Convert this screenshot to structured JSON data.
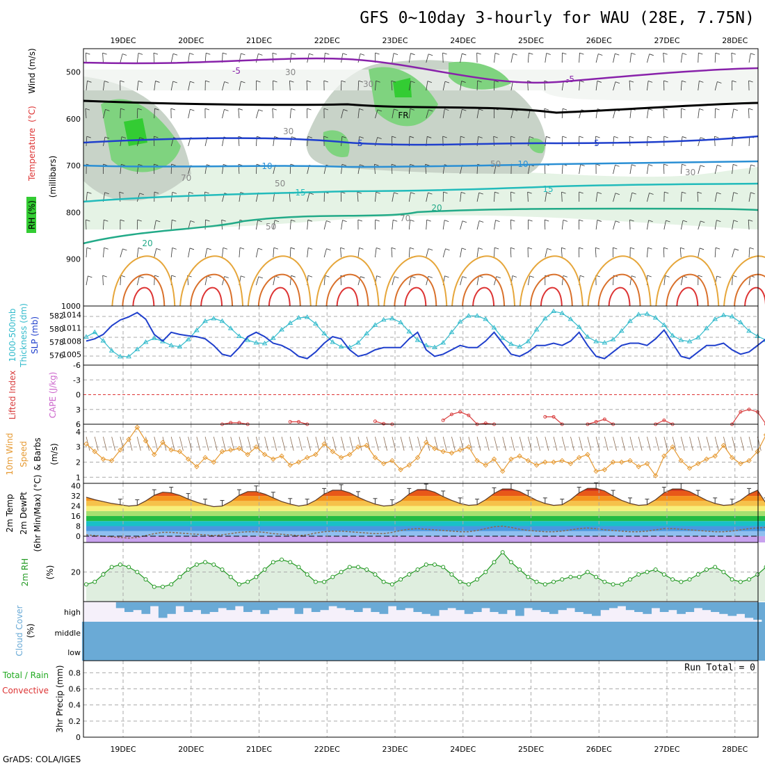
{
  "title": "GFS 0~10day 3-hourly for WAU (28E, 7.75N)",
  "credit": "GrADS: COLA/IGES",
  "colors": {
    "rh_green": "#33cc33",
    "rh_light": "#e5f3e5",
    "rh_gray": "#9aa39a",
    "thickness": "#33bbcc",
    "slp": "#1f3fcc",
    "lifted_index": "#d94040",
    "cape": "#cc66cc",
    "wind": "#e69a33",
    "dewpoint": "#8a6a50",
    "rh2m": "#229922",
    "cloud": "#6aaad6",
    "cloud_bg": "#f5f0fa"
  },
  "chart_data": [
    {
      "id": "sounding",
      "type": "heatmap",
      "x_categories": [
        "19DEC",
        "20DEC",
        "21DEC",
        "22DEC",
        "23DEC",
        "24DEC",
        "25DEC",
        "26DEC",
        "27DEC",
        "28DEC"
      ],
      "y_ticks": [
        "500",
        "600",
        "700",
        "800",
        "900",
        "1000"
      ],
      "ylim": [
        1000,
        450
      ],
      "ylabel_parts": [
        "RH (%)",
        "Temperature",
        "(°C)",
        "Wind (m/s)",
        "(millibars)"
      ],
      "temperature_labels": [
        "-5",
        "-5",
        "FR",
        "5",
        "5",
        "10",
        "10",
        "15",
        "15",
        "20",
        "20"
      ],
      "rh_labels": [
        "30",
        "30",
        "30",
        "30",
        "50",
        "50",
        "50",
        "70",
        "70"
      ]
    },
    {
      "id": "thickness-slp",
      "type": "line",
      "ylabel_left": [
        "1000-500mb",
        "Thickness (dm)"
      ],
      "ylabel_right": "SLP (mb)",
      "y_ticks_left": [
        "582",
        "580",
        "578",
        "576"
      ],
      "y_ticks_right": [
        "1014",
        "1011",
        "1008",
        "1005"
      ],
      "series": [
        {
          "name": "Thickness",
          "values": [
            578.8,
            579.5,
            578.2,
            576.7,
            575.8,
            575.8,
            576.9,
            578.0,
            578.6,
            578.1,
            577.5,
            577.3,
            578.4,
            579.8,
            581.2,
            581.6,
            581.2,
            580.1,
            578.9,
            578.3,
            577.9,
            577.8,
            578.6,
            579.9,
            580.9,
            581.7,
            581.8,
            580.8,
            579.3,
            578.0,
            577.3,
            577.2,
            577.9,
            579.3,
            580.6,
            581.4,
            581.6,
            581.0,
            579.6,
            578.3,
            577.5,
            577.2,
            577.9,
            579.5,
            581.1,
            582.0,
            582.0,
            581.5,
            580.2,
            578.6,
            577.7,
            577.3,
            578.1,
            579.9,
            581.6,
            582.7,
            582.4,
            581.5,
            580.3,
            578.8,
            578.1,
            577.9,
            578.4,
            579.7,
            581.2,
            582.2,
            582.3,
            581.7,
            580.6,
            579.0,
            578.3,
            578.1,
            578.7,
            580.1,
            581.5,
            582.1,
            581.9,
            581.0,
            579.7,
            578.9,
            578.3
          ]
        },
        {
          "name": "SLP",
          "values": [
            1008.0,
            1008.5,
            1009.5,
            1011.5,
            1012.8,
            1013.5,
            1014.5,
            1013.0,
            1009.5,
            1008.0,
            1010.0,
            1009.5,
            1009.2,
            1009.0,
            1008.5,
            1007.0,
            1005.0,
            1004.5,
            1006.5,
            1009.0,
            1010.0,
            1009.0,
            1007.5,
            1007.0,
            1006.0,
            1004.5,
            1004.0,
            1005.5,
            1007.5,
            1009.0,
            1008.5,
            1006.0,
            1004.5,
            1005.0,
            1006.0,
            1006.5,
            1006.5,
            1006.5,
            1008.5,
            1010.0,
            1006.0,
            1004.5,
            1005.0,
            1006.0,
            1007.0,
            1006.5,
            1006.5,
            1008.0,
            1010.0,
            1007.5,
            1005.0,
            1004.5,
            1005.5,
            1007.0,
            1007.0,
            1007.5,
            1007.0,
            1008.0,
            1010.0,
            1007.0,
            1004.5,
            1004.0,
            1005.5,
            1007.0,
            1007.5,
            1007.5,
            1007.0,
            1008.5,
            1010.5,
            1007.5,
            1004.5,
            1004.0,
            1005.5,
            1007.0,
            1007.0,
            1007.5,
            1006.0,
            1005.0,
            1005.5,
            1007.0,
            1008.5
          ]
        }
      ]
    },
    {
      "id": "li-cape",
      "type": "line",
      "ylabel_parts": [
        "Lifted Index",
        "CAPE (J/kg)"
      ],
      "y_ticks": [
        "-6",
        "-3",
        "0",
        "3",
        "6"
      ],
      "ylim": [
        6,
        -6
      ],
      "series": [
        {
          "name": "Lifted Index",
          "values": [
            null,
            null,
            null,
            null,
            null,
            null,
            null,
            null,
            null,
            null,
            null,
            null,
            null,
            null,
            null,
            null,
            6.0,
            5.7,
            5.7,
            6.0,
            null,
            null,
            null,
            null,
            5.5,
            5.5,
            6.0,
            null,
            null,
            null,
            null,
            null,
            null,
            null,
            5.4,
            5.9,
            6.0,
            null,
            null,
            null,
            null,
            null,
            5.2,
            4.0,
            3.5,
            4.2,
            6.0,
            5.8,
            6.0,
            null,
            null,
            null,
            null,
            null,
            4.5,
            4.5,
            6.0,
            null,
            null,
            6.0,
            5.5,
            5.0,
            6.0,
            null,
            null,
            null,
            null,
            6.0,
            5.2,
            6.0,
            null,
            null,
            null,
            null,
            null,
            null,
            6.0,
            3.5,
            3.0,
            3.5,
            6.0
          ]
        }
      ]
    },
    {
      "id": "wind10m",
      "type": "line",
      "ylabel_parts": [
        "10m Wind",
        "Speed",
        "(m/s)",
        "& Barbs"
      ],
      "y_ticks": [
        "4",
        "3",
        "2",
        "1"
      ],
      "ylim": [
        0.6,
        4.5
      ],
      "series": [
        {
          "name": "Speed",
          "values": [
            3.2,
            2.7,
            2.2,
            2.1,
            2.8,
            3.5,
            4.3,
            3.4,
            2.5,
            3.3,
            2.8,
            2.7,
            2.2,
            1.7,
            2.3,
            2.0,
            2.7,
            2.8,
            2.9,
            2.5,
            3.0,
            2.5,
            2.2,
            2.4,
            1.8,
            2.0,
            2.3,
            2.5,
            3.2,
            2.7,
            2.3,
            2.5,
            3.0,
            3.1,
            2.3,
            1.9,
            2.1,
            1.5,
            1.8,
            2.3,
            3.3,
            2.9,
            2.7,
            2.6,
            2.8,
            3.0,
            2.1,
            1.8,
            2.2,
            1.4,
            2.2,
            2.4,
            2.1,
            1.8,
            2.0,
            2.0,
            2.1,
            1.9,
            2.3,
            2.5,
            1.4,
            1.5,
            2.0,
            2.0,
            2.1,
            1.7,
            1.9,
            1.1,
            2.4,
            3.0,
            2.1,
            1.6,
            1.9,
            2.2,
            2.4,
            3.1,
            2.3,
            1.9,
            2.1,
            2.7,
            3.8
          ]
        }
      ]
    },
    {
      "id": "temp2m",
      "type": "area",
      "ylabel_parts": [
        "2m Temp",
        "2m DewPt",
        "(6hr Min/Max) (°C)"
      ],
      "y_ticks": [
        "40",
        "32",
        "24",
        "16",
        "8",
        "0"
      ],
      "ylim": [
        -5,
        42
      ],
      "series": [
        {
          "name": "2m Temp",
          "values": [
            31.0,
            29.0,
            27.5,
            26.0,
            25.0,
            24.0,
            24.5,
            28.0,
            32.5,
            35.0,
            34.5,
            32.5,
            29.5,
            27.0,
            25.0,
            23.5,
            24.0,
            27.5,
            32.5,
            35.5,
            35.5,
            33.5,
            30.5,
            27.5,
            25.5,
            24.0,
            25.0,
            28.5,
            33.5,
            36.5,
            36.5,
            34.5,
            31.0,
            28.0,
            25.5,
            24.0,
            24.5,
            28.0,
            33.5,
            37.0,
            37.0,
            35.0,
            31.5,
            28.5,
            26.0,
            24.5,
            25.0,
            29.0,
            34.0,
            37.5,
            37.5,
            35.5,
            32.0,
            28.5,
            26.0,
            24.5,
            25.0,
            29.0,
            34.5,
            38.0,
            38.0,
            36.0,
            32.0,
            28.5,
            26.0,
            24.5,
            25.0,
            29.0,
            34.5,
            37.5,
            37.5,
            35.5,
            32.0,
            28.5,
            26.0,
            24.5,
            25.0,
            28.5,
            33.5,
            36.5,
            26.0
          ]
        },
        {
          "name": "2m DewPt",
          "values": [
            1.0,
            0.5,
            0.0,
            -0.5,
            -1.0,
            -1.5,
            -1.0,
            0.5,
            2.0,
            3.0,
            3.0,
            2.5,
            2.0,
            1.5,
            1.0,
            0.5,
            1.0,
            2.0,
            3.0,
            3.5,
            3.5,
            3.0,
            2.0,
            1.5,
            1.0,
            0.5,
            1.0,
            2.5,
            3.5,
            4.0,
            4.0,
            3.5,
            3.0,
            2.5,
            2.0,
            2.0,
            3.0,
            4.5,
            5.5,
            6.0,
            5.5,
            5.0,
            4.5,
            4.0,
            3.5,
            3.5,
            4.5,
            6.0,
            7.5,
            8.0,
            7.0,
            5.5,
            4.5,
            4.0,
            3.5,
            3.5,
            4.0,
            5.0,
            6.0,
            6.5,
            6.0,
            5.0,
            4.5,
            4.0,
            3.5,
            3.5,
            4.0,
            5.0,
            6.0,
            6.0,
            5.5,
            5.0,
            4.5,
            4.0,
            3.5,
            3.5,
            4.0,
            5.0,
            6.0,
            6.5,
            7.0
          ]
        }
      ]
    },
    {
      "id": "rh2m",
      "type": "area",
      "ylabel_parts": [
        "2m RH",
        "(%)"
      ],
      "y_ticks": [
        "20"
      ],
      "ylim": [
        8,
        32
      ],
      "series": [
        {
          "name": "2m RH",
          "values": [
            15,
            16,
            19,
            22,
            23,
            22,
            20,
            17,
            14,
            14,
            15,
            18,
            21,
            23,
            24,
            23,
            21,
            18,
            15,
            16,
            18,
            21,
            24,
            25,
            24,
            22,
            19,
            16,
            16,
            18,
            20,
            22,
            22,
            21,
            19,
            16,
            15,
            17,
            19,
            21,
            23,
            23,
            22,
            19,
            16,
            15,
            17,
            20,
            24,
            28,
            24,
            21,
            18,
            16,
            15,
            16,
            17,
            18,
            18,
            20,
            18,
            16,
            15,
            15,
            17,
            19,
            20,
            21,
            19,
            17,
            16,
            17,
            19,
            21,
            22,
            20,
            17,
            16,
            17,
            19,
            22
          ]
        }
      ]
    },
    {
      "id": "cloud-cover",
      "type": "bar",
      "ylabel_parts": [
        "Cloud Cover",
        "(%)"
      ],
      "levels": [
        "high",
        "middle",
        "low"
      ],
      "series": [
        {
          "name": "high",
          "values": [
            0,
            0,
            0,
            0,
            30,
            50,
            40,
            60,
            20,
            80,
            60,
            20,
            50,
            40,
            60,
            50,
            30,
            40,
            20,
            50,
            40,
            60,
            40,
            30,
            30,
            60,
            30,
            50,
            40,
            20,
            30,
            40,
            50,
            30,
            50,
            60,
            20,
            40,
            30,
            50,
            60,
            70,
            40,
            30,
            40,
            60,
            50,
            30,
            50,
            60,
            40,
            70,
            30,
            40,
            50,
            60,
            40,
            30,
            50,
            60,
            70,
            40,
            30,
            20,
            40,
            50,
            60,
            30,
            50,
            40,
            60,
            50,
            30,
            40,
            50,
            60,
            70,
            60,
            80,
            90,
            100
          ]
        },
        {
          "name": "middle",
          "values": [
            100,
            100,
            100,
            100,
            100,
            100,
            100,
            100,
            100,
            100,
            100,
            100,
            100,
            100,
            100,
            100,
            100,
            100,
            100,
            100,
            100,
            100,
            100,
            100,
            100,
            100,
            100,
            100,
            100,
            100,
            100,
            100,
            100,
            100,
            100,
            100,
            100,
            100,
            100,
            100,
            100,
            100,
            100,
            100,
            100,
            100,
            100,
            100,
            100,
            100,
            100,
            100,
            100,
            100,
            100,
            100,
            100,
            100,
            100,
            100,
            100,
            100,
            100,
            100,
            100,
            100,
            100,
            100,
            100,
            100,
            100,
            100,
            100,
            100,
            100,
            100,
            100,
            100,
            100,
            100,
            100
          ]
        },
        {
          "name": "low",
          "values": [
            100,
            100,
            100,
            100,
            100,
            100,
            100,
            100,
            100,
            100,
            100,
            100,
            100,
            100,
            100,
            100,
            100,
            100,
            100,
            100,
            100,
            100,
            100,
            100,
            100,
            100,
            100,
            100,
            100,
            100,
            100,
            100,
            100,
            100,
            100,
            100,
            100,
            100,
            100,
            100,
            100,
            100,
            100,
            100,
            100,
            100,
            100,
            100,
            100,
            100,
            100,
            100,
            100,
            100,
            100,
            100,
            100,
            100,
            100,
            100,
            100,
            100,
            100,
            100,
            100,
            100,
            100,
            100,
            100,
            100,
            100,
            100,
            100,
            100,
            100,
            100,
            100,
            100,
            100,
            100,
            100
          ]
        }
      ]
    },
    {
      "id": "precip",
      "type": "bar",
      "ylabel_parts": [
        "Total / Rain",
        "Convective",
        "3hr Precip (mm)"
      ],
      "y_ticks": [
        "0.8",
        "0.6",
        "0.4",
        "0.2",
        "0"
      ],
      "ylim": [
        0,
        0.95
      ],
      "run_total": "Run Total = 0",
      "series": [
        {
          "name": "Total",
          "values": []
        }
      ]
    }
  ]
}
